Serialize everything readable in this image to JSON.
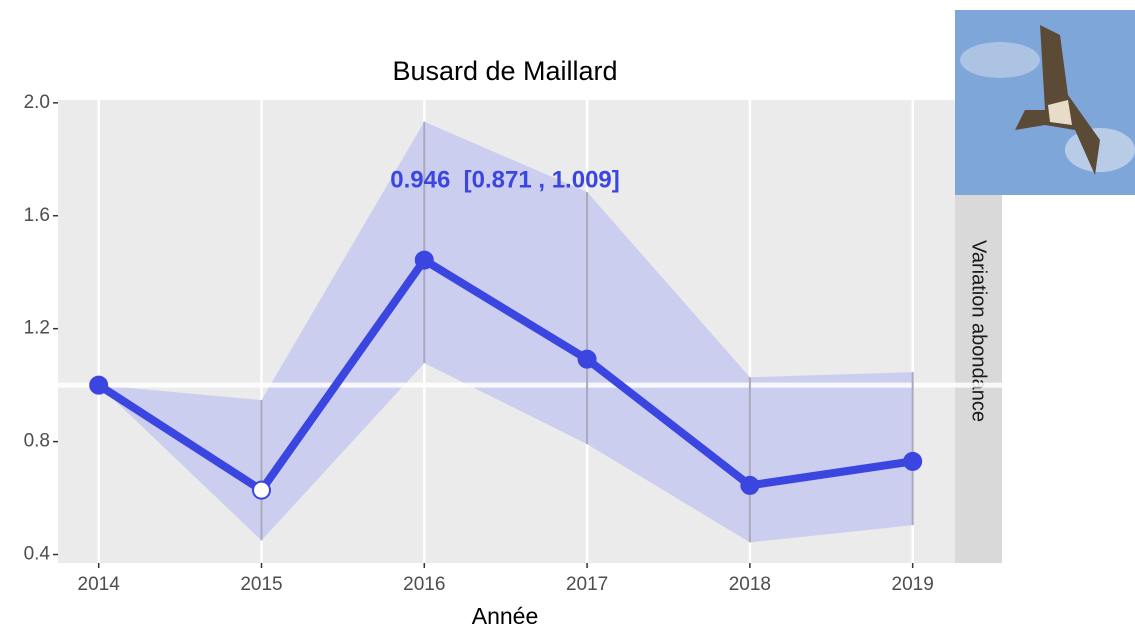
{
  "chart_data": {
    "type": "line",
    "title": "Busard de Maillard",
    "xlabel": "Année",
    "strip_label": "Variation abondance",
    "annotation": "0.946  [0.871 , 1.009]",
    "x": [
      2014,
      2015,
      2016,
      2017,
      2018,
      2019
    ],
    "values": [
      1.0,
      0.628,
      1.443,
      1.092,
      0.645,
      0.73
    ],
    "lower": [
      1.0,
      0.45,
      1.078,
      0.791,
      0.443,
      0.504
    ],
    "upper": [
      1.0,
      0.947,
      1.933,
      1.684,
      1.028,
      1.046
    ],
    "color": "#3b45e0",
    "ribbon_color": "#c8cbee",
    "point_fills": [
      "#3b45e0",
      "#ffffff",
      "#3b45e0",
      "#3b45e0",
      "#3b45e0",
      "#3b45e0"
    ],
    "hline": 1,
    "xlim": [
      2013.75,
      2019.26
    ],
    "ylim": [
      0.37,
      2.01
    ],
    "xticks": [
      2014,
      2015,
      2016,
      2017,
      2018,
      2019
    ],
    "yticks": [
      0.4,
      0.8,
      1.2,
      1.6,
      {
        "value": 2,
        "label": "2.0"
      }
    ],
    "grid": "x"
  }
}
